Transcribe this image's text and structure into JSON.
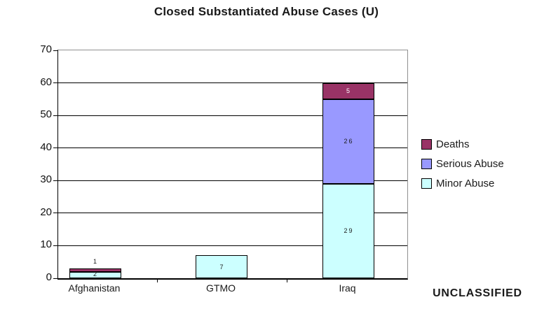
{
  "title": "Closed Substantiated Abuse Cases (U)",
  "classification": {
    "label": "UNCLASSIFIED"
  },
  "colors": {
    "deaths": "#993366",
    "serious_abuse": "#9999FF",
    "minor_abuse": "#CCFFFF",
    "plot_border": "#909090",
    "gridline": "#000000",
    "value_label_dark": "#1a1a1a",
    "value_label_light": "#FFFFFF"
  },
  "chart_data": {
    "type": "bar",
    "stacked": true,
    "title": "Closed Substantiated Abuse Cases (U)",
    "categories": [
      "Afghanistan",
      "GTMO",
      "Iraq"
    ],
    "series": [
      {
        "name": "Minor Abuse",
        "color": "#CCFFFF",
        "values": [
          2,
          7,
          29
        ]
      },
      {
        "name": "Serious Abuse",
        "color": "#9999FF",
        "values": [
          0,
          0,
          26
        ]
      },
      {
        "name": "Deaths",
        "color": "#993366",
        "values": [
          1,
          0,
          5
        ]
      }
    ],
    "totals": [
      3,
      7,
      60
    ],
    "xlabel": "",
    "ylabel": "",
    "ylim": [
      0,
      70
    ],
    "ytick_step": 10,
    "yticks": [
      0,
      10,
      20,
      30,
      40,
      50,
      60,
      70
    ],
    "gridlines": true,
    "legend_position": "right",
    "legend_order": [
      "Deaths",
      "Serious Abuse",
      "Minor Abuse"
    ]
  }
}
